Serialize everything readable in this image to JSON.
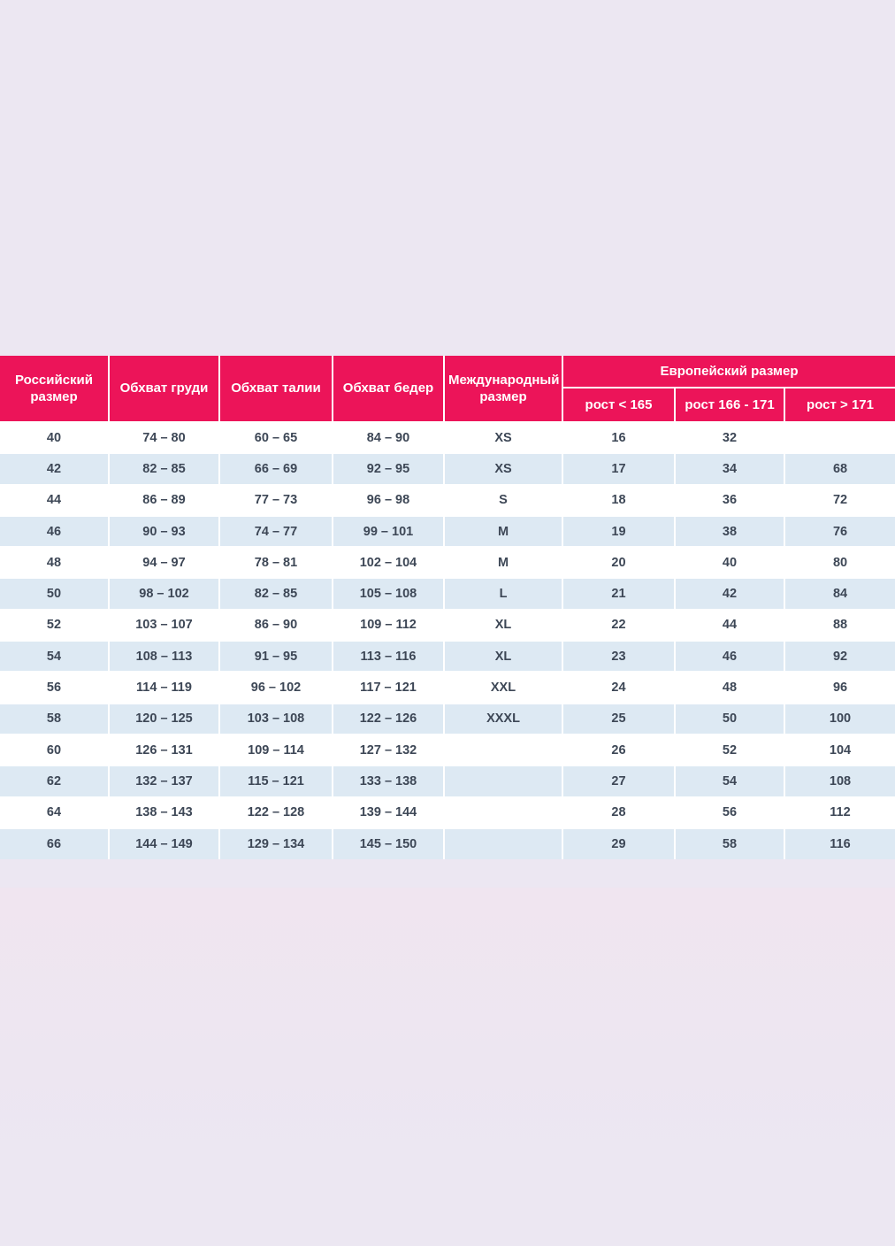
{
  "colors": {
    "page_bg": "#ECE7F2",
    "header_bg": "#EC1459",
    "header_text": "#FFFFFF",
    "row_bg": "#FFFFFF",
    "row_alt_bg": "#DDE9F3",
    "cell_text": "#3D4756",
    "grid_line": "#FFFFFF"
  },
  "chart_data": {
    "type": "table",
    "title": "",
    "header": {
      "columns": [
        "Российский размер",
        "Обхват груди",
        "Обхват талии",
        "Обхват бедер",
        "Международный размер"
      ],
      "group": {
        "label": "Европейский размер",
        "subcolumns": [
          "рост < 165",
          "рост 166 - 171",
          "рост > 171"
        ]
      }
    },
    "columns_flat": [
      "Российский размер",
      "Обхват груди",
      "Обхват талии",
      "Обхват бедер",
      "Международный размер",
      "Европейский размер: рост < 165",
      "Европейский размер: рост 166 - 171",
      "Европейский размер: рост > 171"
    ],
    "rows": [
      [
        "40",
        "74 – 80",
        "60 – 65",
        "84 – 90",
        "XS",
        "16",
        "32",
        ""
      ],
      [
        "42",
        "82 – 85",
        "66 – 69",
        "92 – 95",
        "XS",
        "17",
        "34",
        "68"
      ],
      [
        "44",
        "86 – 89",
        "77 – 73",
        "96 – 98",
        "S",
        "18",
        "36",
        "72"
      ],
      [
        "46",
        "90 – 93",
        "74 – 77",
        "99 – 101",
        "M",
        "19",
        "38",
        "76"
      ],
      [
        "48",
        "94 – 97",
        "78 – 81",
        "102 – 104",
        "M",
        "20",
        "40",
        "80"
      ],
      [
        "50",
        "98 – 102",
        "82 – 85",
        "105 – 108",
        "L",
        "21",
        "42",
        "84"
      ],
      [
        "52",
        "103 – 107",
        "86 – 90",
        "109 – 112",
        "XL",
        "22",
        "44",
        "88"
      ],
      [
        "54",
        "108 – 113",
        "91 – 95",
        "113 – 116",
        "XL",
        "23",
        "46",
        "92"
      ],
      [
        "56",
        "114 – 119",
        "96 – 102",
        "117 – 121",
        "XXL",
        "24",
        "48",
        "96"
      ],
      [
        "58",
        "120 – 125",
        "103 – 108",
        "122 – 126",
        "XXXL",
        "25",
        "50",
        "100"
      ],
      [
        "60",
        "126 – 131",
        "109 – 114",
        "127 – 132",
        "",
        "26",
        "52",
        "104"
      ],
      [
        "62",
        "132 – 137",
        "115 – 121",
        "133 – 138",
        "",
        "27",
        "54",
        "108"
      ],
      [
        "64",
        "138 – 143",
        "122 – 128",
        "139 – 144",
        "",
        "28",
        "56",
        "112"
      ],
      [
        "66",
        "144 – 149",
        "129 – 134",
        "145 – 150",
        "",
        "29",
        "58",
        "116"
      ]
    ]
  }
}
